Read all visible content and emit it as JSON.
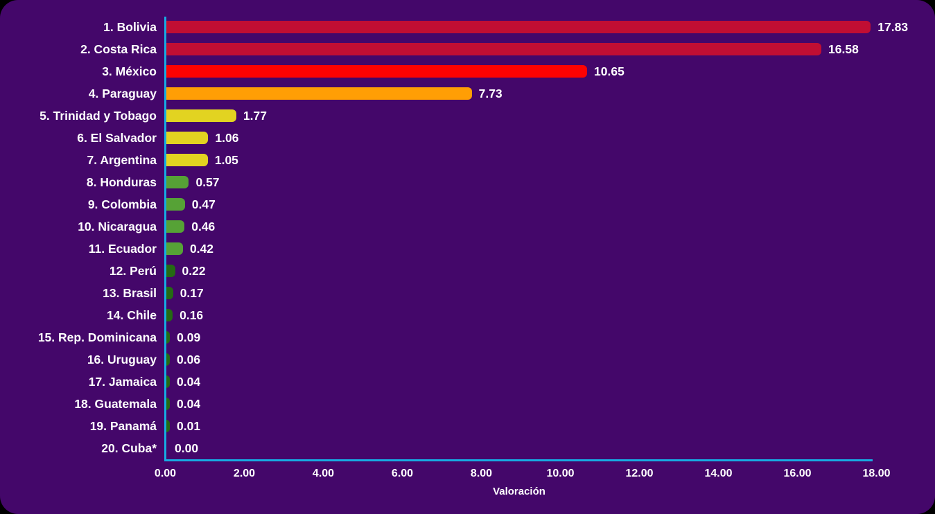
{
  "chart_data": {
    "type": "bar",
    "orientation": "horizontal",
    "title": "",
    "xlabel": "Valoración",
    "categories": [
      "1. Bolivia",
      "2. Costa Rica",
      "3. México",
      "4. Paraguay",
      "5. Trinidad y Tobago",
      "6. El Salvador",
      "7. Argentina",
      "8. Honduras",
      "9. Colombia",
      "10. Nicaragua",
      "11. Ecuador",
      "12. Perú",
      "13. Brasil",
      "14. Chile",
      "15. Rep. Dominicana",
      "16. Uruguay",
      "17. Jamaica",
      "18. Guatemala",
      "19. Panamá",
      "20. Cuba*"
    ],
    "values": [
      17.83,
      16.58,
      10.65,
      7.73,
      1.77,
      1.06,
      1.05,
      0.57,
      0.47,
      0.46,
      0.42,
      0.22,
      0.17,
      0.16,
      0.09,
      0.06,
      0.04,
      0.04,
      0.01,
      0.0
    ],
    "value_labels": [
      "17.83",
      "16.58",
      "10.65",
      "7.73",
      "1.77",
      "1.06",
      "1.05",
      "0.57",
      "0.47",
      "0.46",
      "0.42",
      "0.22",
      "0.17",
      "0.16",
      "0.09",
      "0.06",
      "0.04",
      "0.04",
      "0.01",
      "0.00"
    ],
    "bar_colors": [
      "#C10E33",
      "#C10E33",
      "#FE0202",
      "#FF9E05",
      "#E2D321",
      "#E2D321",
      "#E2D321",
      "#56A236",
      "#56A236",
      "#56A236",
      "#56A236",
      "#256A13",
      "#256A13",
      "#256A13",
      "#256A13",
      "#256A13",
      "#256A13",
      "#256A13",
      "#256A13",
      "#256A13"
    ],
    "xlim": [
      0,
      18
    ],
    "x_tick_labels": [
      "0.00",
      "2.00",
      "4.00",
      "6.00",
      "8.00",
      "10.00",
      "12.00",
      "14.00",
      "16.00",
      "18.00"
    ],
    "grid": false,
    "legend": "none"
  },
  "colors": {
    "background": "#44076A",
    "outer_background": "#000000",
    "axis": "#17ABE2",
    "text": "#FFFFFF"
  }
}
